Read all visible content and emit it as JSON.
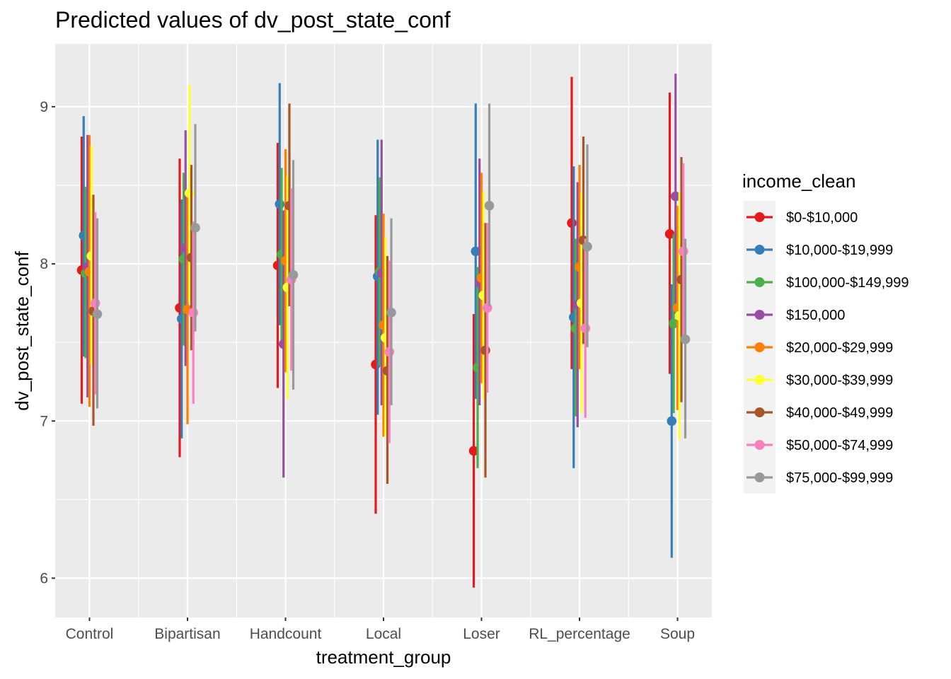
{
  "chart_data": {
    "type": "scatter",
    "title": "Predicted values of dv_post_state_conf",
    "xlabel": "treatment_group",
    "ylabel": "dv_post_state_conf",
    "ylim": [
      5.75,
      9.4
    ],
    "yticks": [
      6,
      7,
      8,
      9
    ],
    "categories": [
      "Control",
      "Bipartisan",
      "Handcount",
      "Local",
      "Loser",
      "RL_percentage",
      "Soup"
    ],
    "legend_title": "income_clean",
    "legend_position": "right",
    "grid": true,
    "series": [
      {
        "name": "$0-$10,000",
        "color": "#E41A1C",
        "values": [
          7.96,
          7.72,
          7.99,
          7.36,
          6.81,
          8.26,
          8.19
        ],
        "lower": [
          7.11,
          6.77,
          7.21,
          6.41,
          5.94,
          7.33,
          7.3
        ],
        "upper": [
          8.81,
          8.67,
          8.77,
          8.31,
          7.68,
          9.19,
          9.09
        ]
      },
      {
        "name": "$10,000-$19,999",
        "color": "#377EB8",
        "values": [
          8.18,
          7.65,
          8.38,
          7.92,
          8.08,
          7.66,
          7.0
        ],
        "lower": [
          7.41,
          6.89,
          7.61,
          7.04,
          7.14,
          6.7,
          6.13
        ],
        "upper": [
          8.94,
          8.41,
          9.15,
          8.79,
          9.02,
          8.62,
          7.87
        ]
      },
      {
        "name": "$100,000-$149,999",
        "color": "#4DAF4A",
        "values": [
          7.94,
          8.03,
          8.06,
          7.95,
          7.34,
          7.59,
          7.62
        ],
        "lower": [
          7.4,
          7.48,
          7.51,
          7.35,
          6.7,
          7.03,
          7.05
        ],
        "upper": [
          8.49,
          8.58,
          8.61,
          8.55,
          7.98,
          8.16,
          8.19
        ]
      },
      {
        "name": "$150,000",
        "color": "#984EA3",
        "values": [
          7.98,
          8.1,
          7.49,
          7.94,
          7.88,
          7.74,
          8.43
        ],
        "lower": [
          7.15,
          7.35,
          6.64,
          7.1,
          7.1,
          6.96,
          7.66
        ],
        "upper": [
          8.82,
          8.85,
          8.34,
          8.79,
          8.67,
          8.52,
          9.21
        ]
      },
      {
        "name": "$20,000-$29,999",
        "color": "#FF7F00",
        "values": [
          7.95,
          7.71,
          8.02,
          7.61,
          7.91,
          7.98,
          7.72
        ],
        "lower": [
          7.09,
          6.98,
          7.31,
          6.9,
          7.24,
          7.33,
          7.07
        ],
        "upper": [
          8.82,
          8.44,
          8.73,
          8.32,
          8.58,
          8.63,
          8.37
        ]
      },
      {
        "name": "$30,000-$39,999",
        "color": "#FFFF33",
        "values": [
          8.05,
          8.45,
          7.85,
          7.53,
          7.8,
          7.75,
          7.67
        ],
        "lower": [
          7.36,
          7.76,
          7.14,
          6.9,
          7.14,
          7.05,
          6.88
        ],
        "upper": [
          8.75,
          9.14,
          8.56,
          8.17,
          8.46,
          8.45,
          8.46
        ]
      },
      {
        "name": "$40,000-$49,999",
        "color": "#A65628",
        "values": [
          7.7,
          8.04,
          8.37,
          7.32,
          7.45,
          8.15,
          7.9
        ],
        "lower": [
          6.97,
          7.45,
          7.73,
          6.6,
          6.64,
          7.49,
          7.12
        ],
        "upper": [
          8.44,
          8.63,
          9.02,
          8.05,
          8.26,
          8.81,
          8.68
        ]
      },
      {
        "name": "$50,000-$74,999",
        "color": "#F781BF",
        "values": [
          7.75,
          7.69,
          7.9,
          7.44,
          7.72,
          7.59,
          8.08
        ],
        "lower": [
          7.17,
          7.11,
          7.32,
          6.86,
          7.18,
          7.02,
          7.52
        ],
        "upper": [
          8.33,
          8.27,
          8.48,
          8.02,
          8.26,
          8.16,
          8.64
        ]
      },
      {
        "name": "$75,000-$99,999",
        "color": "#999999",
        "values": [
          7.68,
          8.23,
          7.93,
          7.69,
          8.37,
          8.11,
          7.52
        ],
        "lower": [
          7.08,
          7.57,
          7.2,
          7.1,
          7.73,
          7.47,
          6.89
        ],
        "upper": [
          8.29,
          8.89,
          8.66,
          8.29,
          9.02,
          8.76,
          8.16
        ]
      }
    ]
  }
}
